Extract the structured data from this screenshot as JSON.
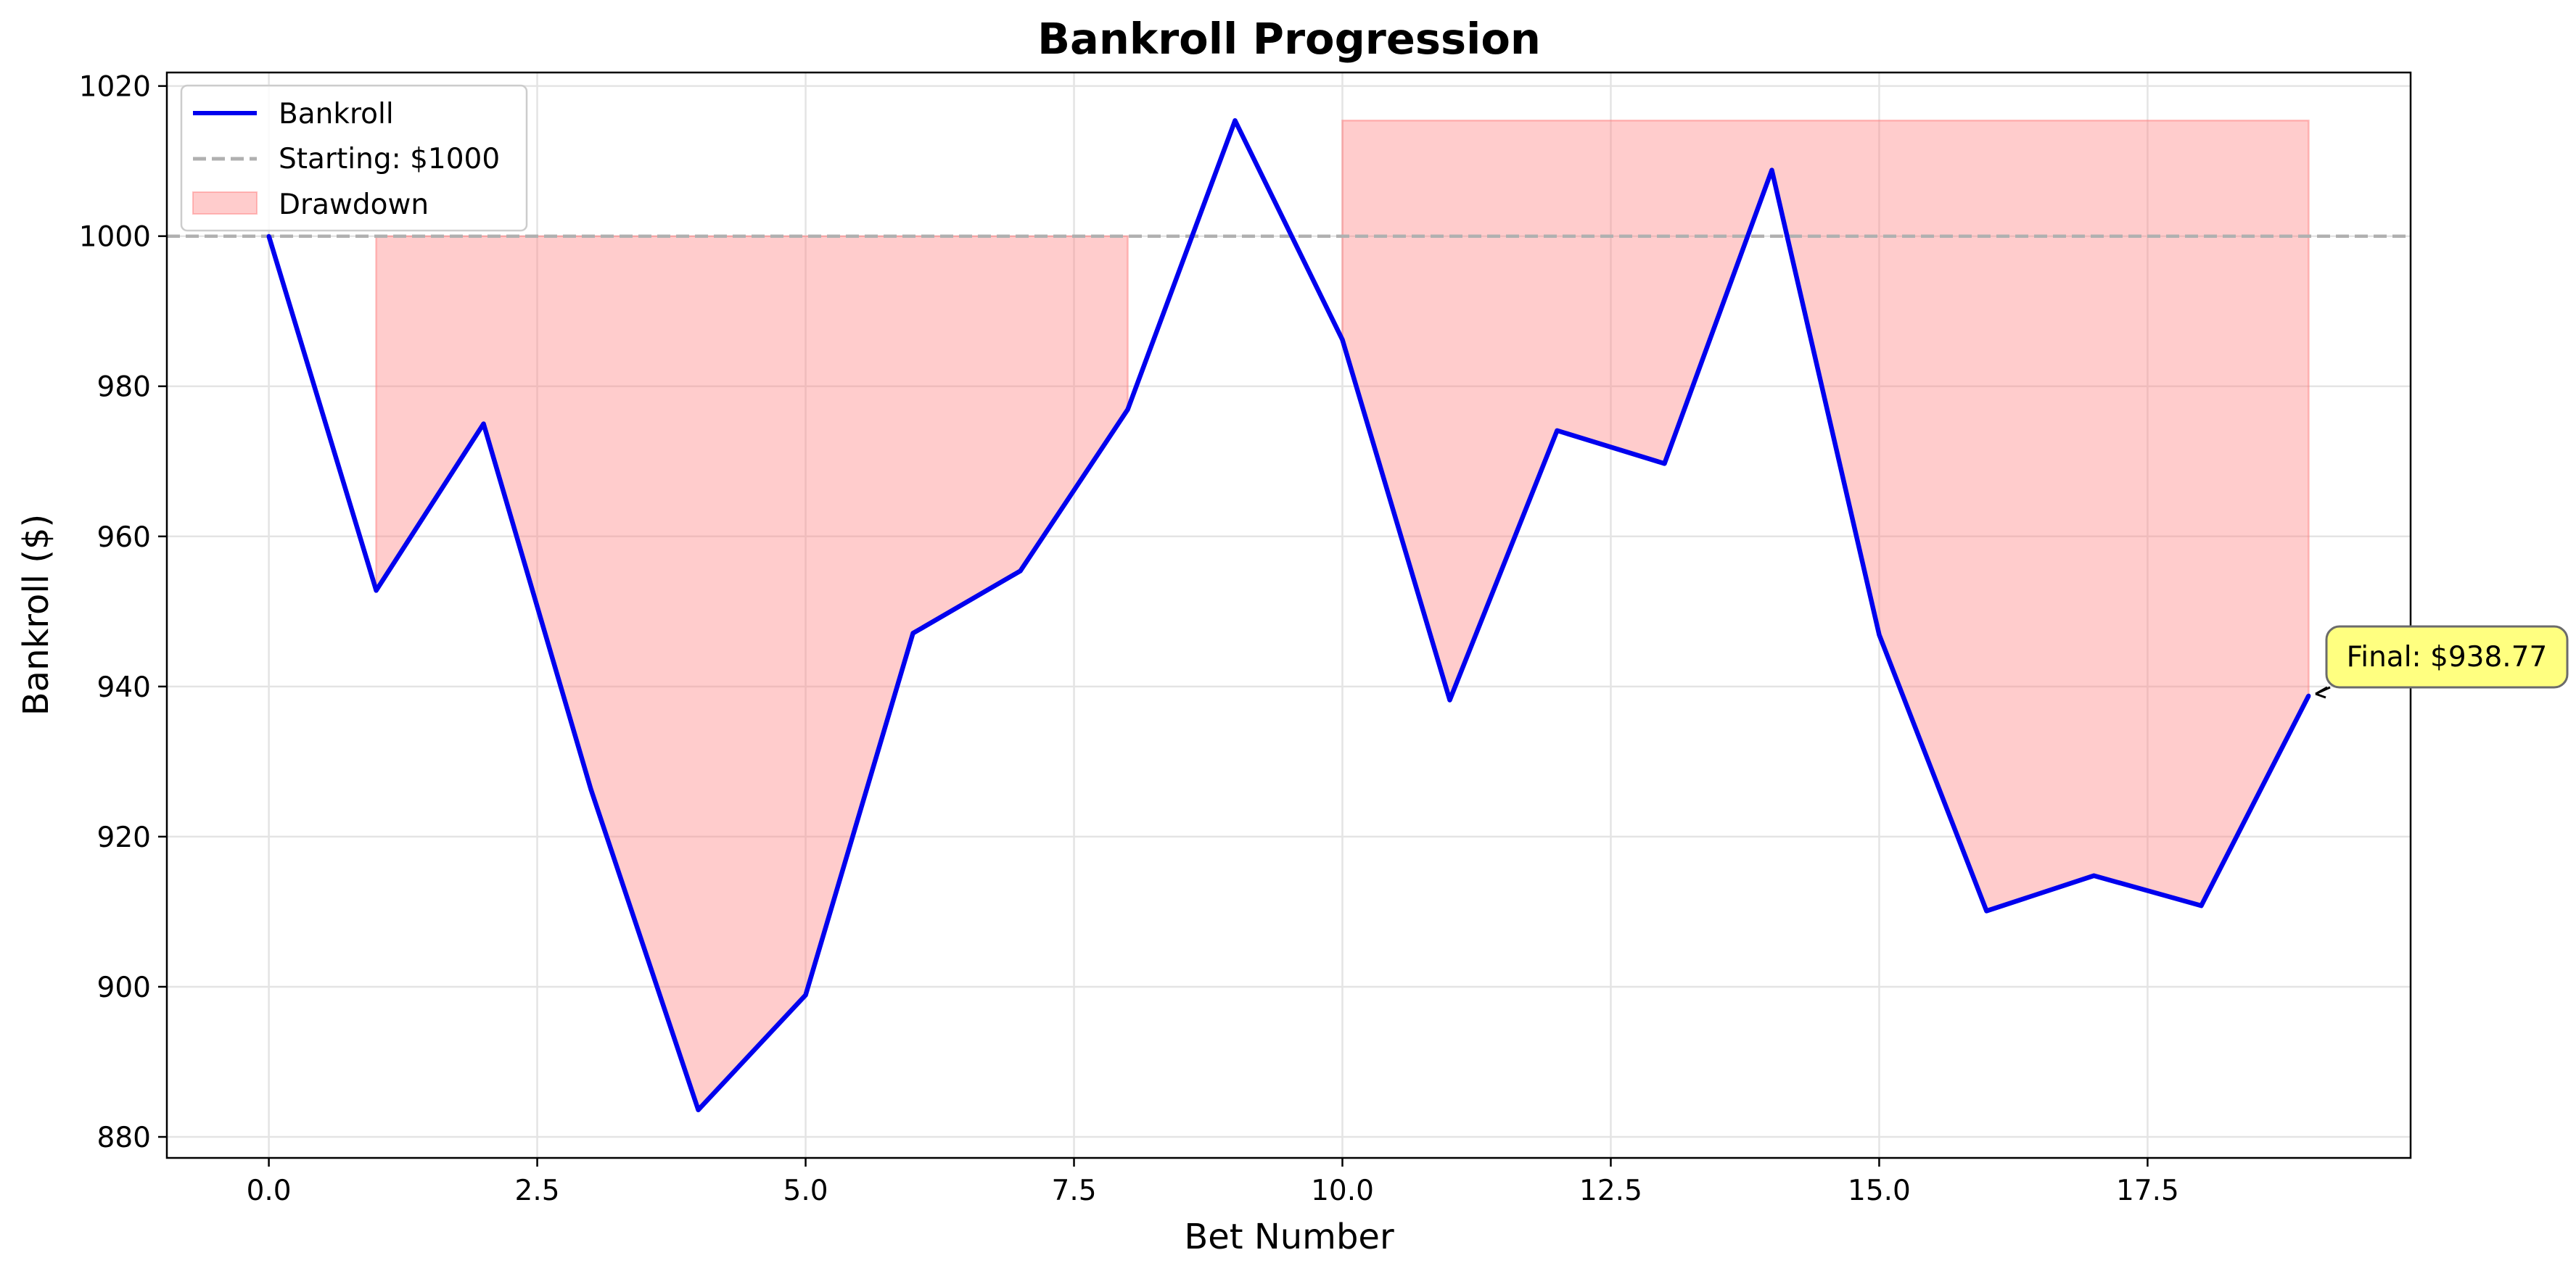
{
  "chart_data": {
    "type": "line",
    "title": "Bankroll Progression",
    "xlabel": "Bet Number",
    "ylabel": "Bankroll ($)",
    "xlim": [
      -0.95,
      19.95
    ],
    "ylim": [
      877.2,
      1021.8
    ],
    "x_ticks": [
      0,
      2.5,
      5,
      7.5,
      10,
      12.5,
      15,
      17.5
    ],
    "x_tick_labels": [
      "0.0",
      "2.5",
      "5.0",
      "7.5",
      "10.0",
      "12.5",
      "15.0",
      "17.5"
    ],
    "y_ticks": [
      880,
      900,
      920,
      940,
      960,
      980,
      1000,
      1020
    ],
    "y_tick_labels": [
      "880",
      "900",
      "920",
      "940",
      "960",
      "980",
      "1000",
      "1020"
    ],
    "grid": true,
    "legend_position": "top-left",
    "series": [
      {
        "name": "Bankroll",
        "color": "#0000ee",
        "x": [
          0,
          1,
          2,
          3,
          4,
          5,
          6,
          7,
          8,
          9,
          10,
          11,
          12,
          13,
          14,
          15,
          16,
          17,
          18,
          19
        ],
        "values": [
          1000.0,
          952.8,
          975.0,
          926.3,
          883.6,
          898.9,
          947.1,
          955.4,
          976.9,
          1015.4,
          986.2,
          938.2,
          974.1,
          969.7,
          1008.8,
          946.9,
          910.1,
          914.8,
          910.8,
          938.77
        ]
      }
    ],
    "reference_line": {
      "name": "Starting: $1000",
      "value": 1000,
      "color": "#b0b0b0"
    },
    "drawdown": {
      "name": "Drawdown",
      "color": "#ff8080",
      "regions": [
        {
          "x_start": 1,
          "x_end": 8,
          "peak": 1000
        },
        {
          "x_start": 10,
          "x_end": 19,
          "peak": 1015.4
        }
      ]
    },
    "annotation": {
      "text": "Final: $938.77",
      "x": 19,
      "y": 938.77,
      "box_color": "#ffff80"
    }
  }
}
